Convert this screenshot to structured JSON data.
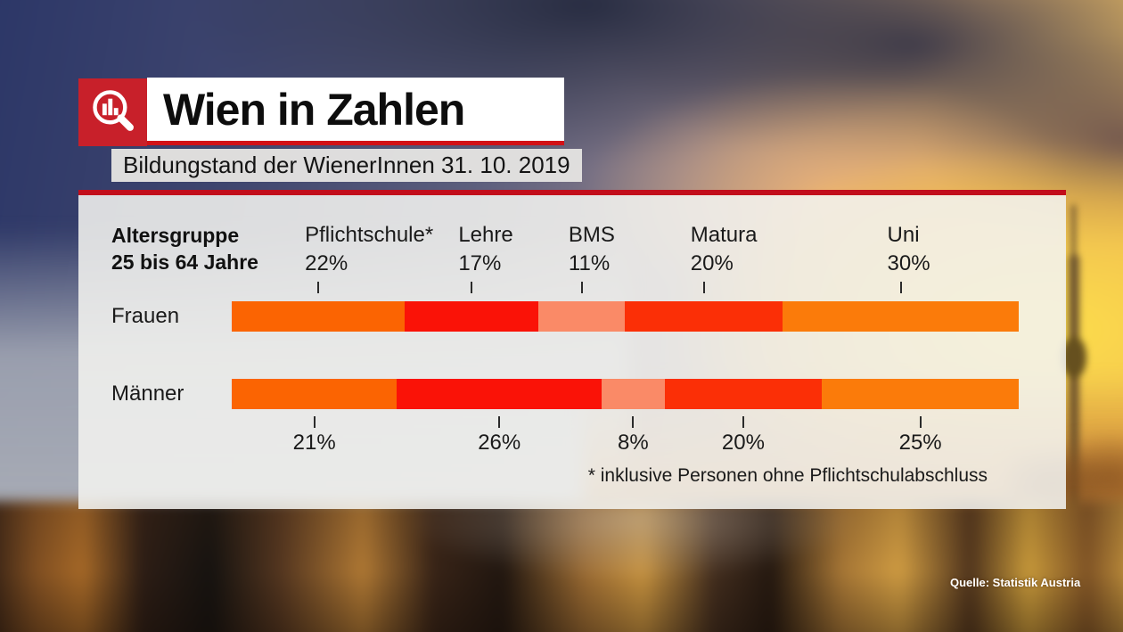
{
  "header": {
    "title": "Wien in Zahlen",
    "subtitle": "Bildungstand der WienerInnen 31. 10. 2019",
    "logo_icon": "bar-chart-magnifier-icon",
    "brand_red": "#c8202a",
    "rule_red": "#d21117",
    "panel_border_red": "#c20d1b"
  },
  "chart_data": {
    "type": "bar",
    "variant": "stacked-horizontal",
    "title": "Bildungstand der WienerInnen 31. 10. 2019",
    "age_group": {
      "line1": "Altersgruppe",
      "line2": "25 bis 64 Jahre"
    },
    "categories": [
      "Pflichtschule*",
      "Lehre",
      "BMS",
      "Matura",
      "Uni"
    ],
    "series": [
      {
        "name": "Frauen",
        "values": [
          22,
          17,
          11,
          20,
          30
        ]
      },
      {
        "name": "Männer",
        "values": [
          21,
          26,
          8,
          20,
          25
        ]
      }
    ],
    "unit": "%",
    "xlim": [
      0,
      100
    ],
    "legend_position": "labels-above-and-below",
    "grid": false,
    "segment_colors": [
      "#fb6402",
      "#fa1207",
      "#fa8a67",
      "#fb2f06",
      "#fb7b0a"
    ],
    "footnote": "* inklusive Personen ohne Pflichtschulabschluss",
    "source": "Quelle: Statistik Austria"
  }
}
